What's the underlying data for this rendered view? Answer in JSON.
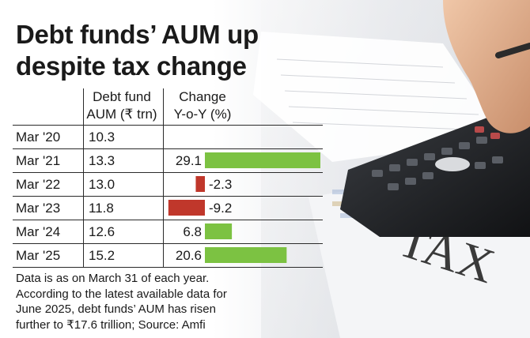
{
  "title": "Debt funds’ AUM up despite tax change",
  "columns": {
    "aum_line1": "Debt fund",
    "aum_line2": "AUM (₹ trn)",
    "change_line1": "Change",
    "change_line2": "Y-o-Y (%)"
  },
  "note": "Data is as on March 31 of each year. According to the latest available data for June 2025, debt funds’ AUM has risen further to ₹17.6 trillion; Source: Amfi",
  "colors": {
    "positive": "#7cc242",
    "negative": "#c0372b"
  },
  "chart_data": {
    "type": "table",
    "title": "Debt funds’ AUM up despite tax change",
    "rows": [
      {
        "label": "Mar '20",
        "aum": "10.3",
        "change": null,
        "change_label": ""
      },
      {
        "label": "Mar '21",
        "aum": "13.3",
        "change": 29.1,
        "change_label": "29.1"
      },
      {
        "label": "Mar '22",
        "aum": "13.0",
        "change": -2.3,
        "change_label": "-2.3"
      },
      {
        "label": "Mar '23",
        "aum": "11.8",
        "change": -9.2,
        "change_label": "-9.2"
      },
      {
        "label": "Mar '24",
        "aum": "12.6",
        "change": 6.8,
        "change_label": "6.8"
      },
      {
        "label": "Mar '25",
        "aum": "15.2",
        "change": 20.6,
        "change_label": "20.6"
      }
    ]
  }
}
